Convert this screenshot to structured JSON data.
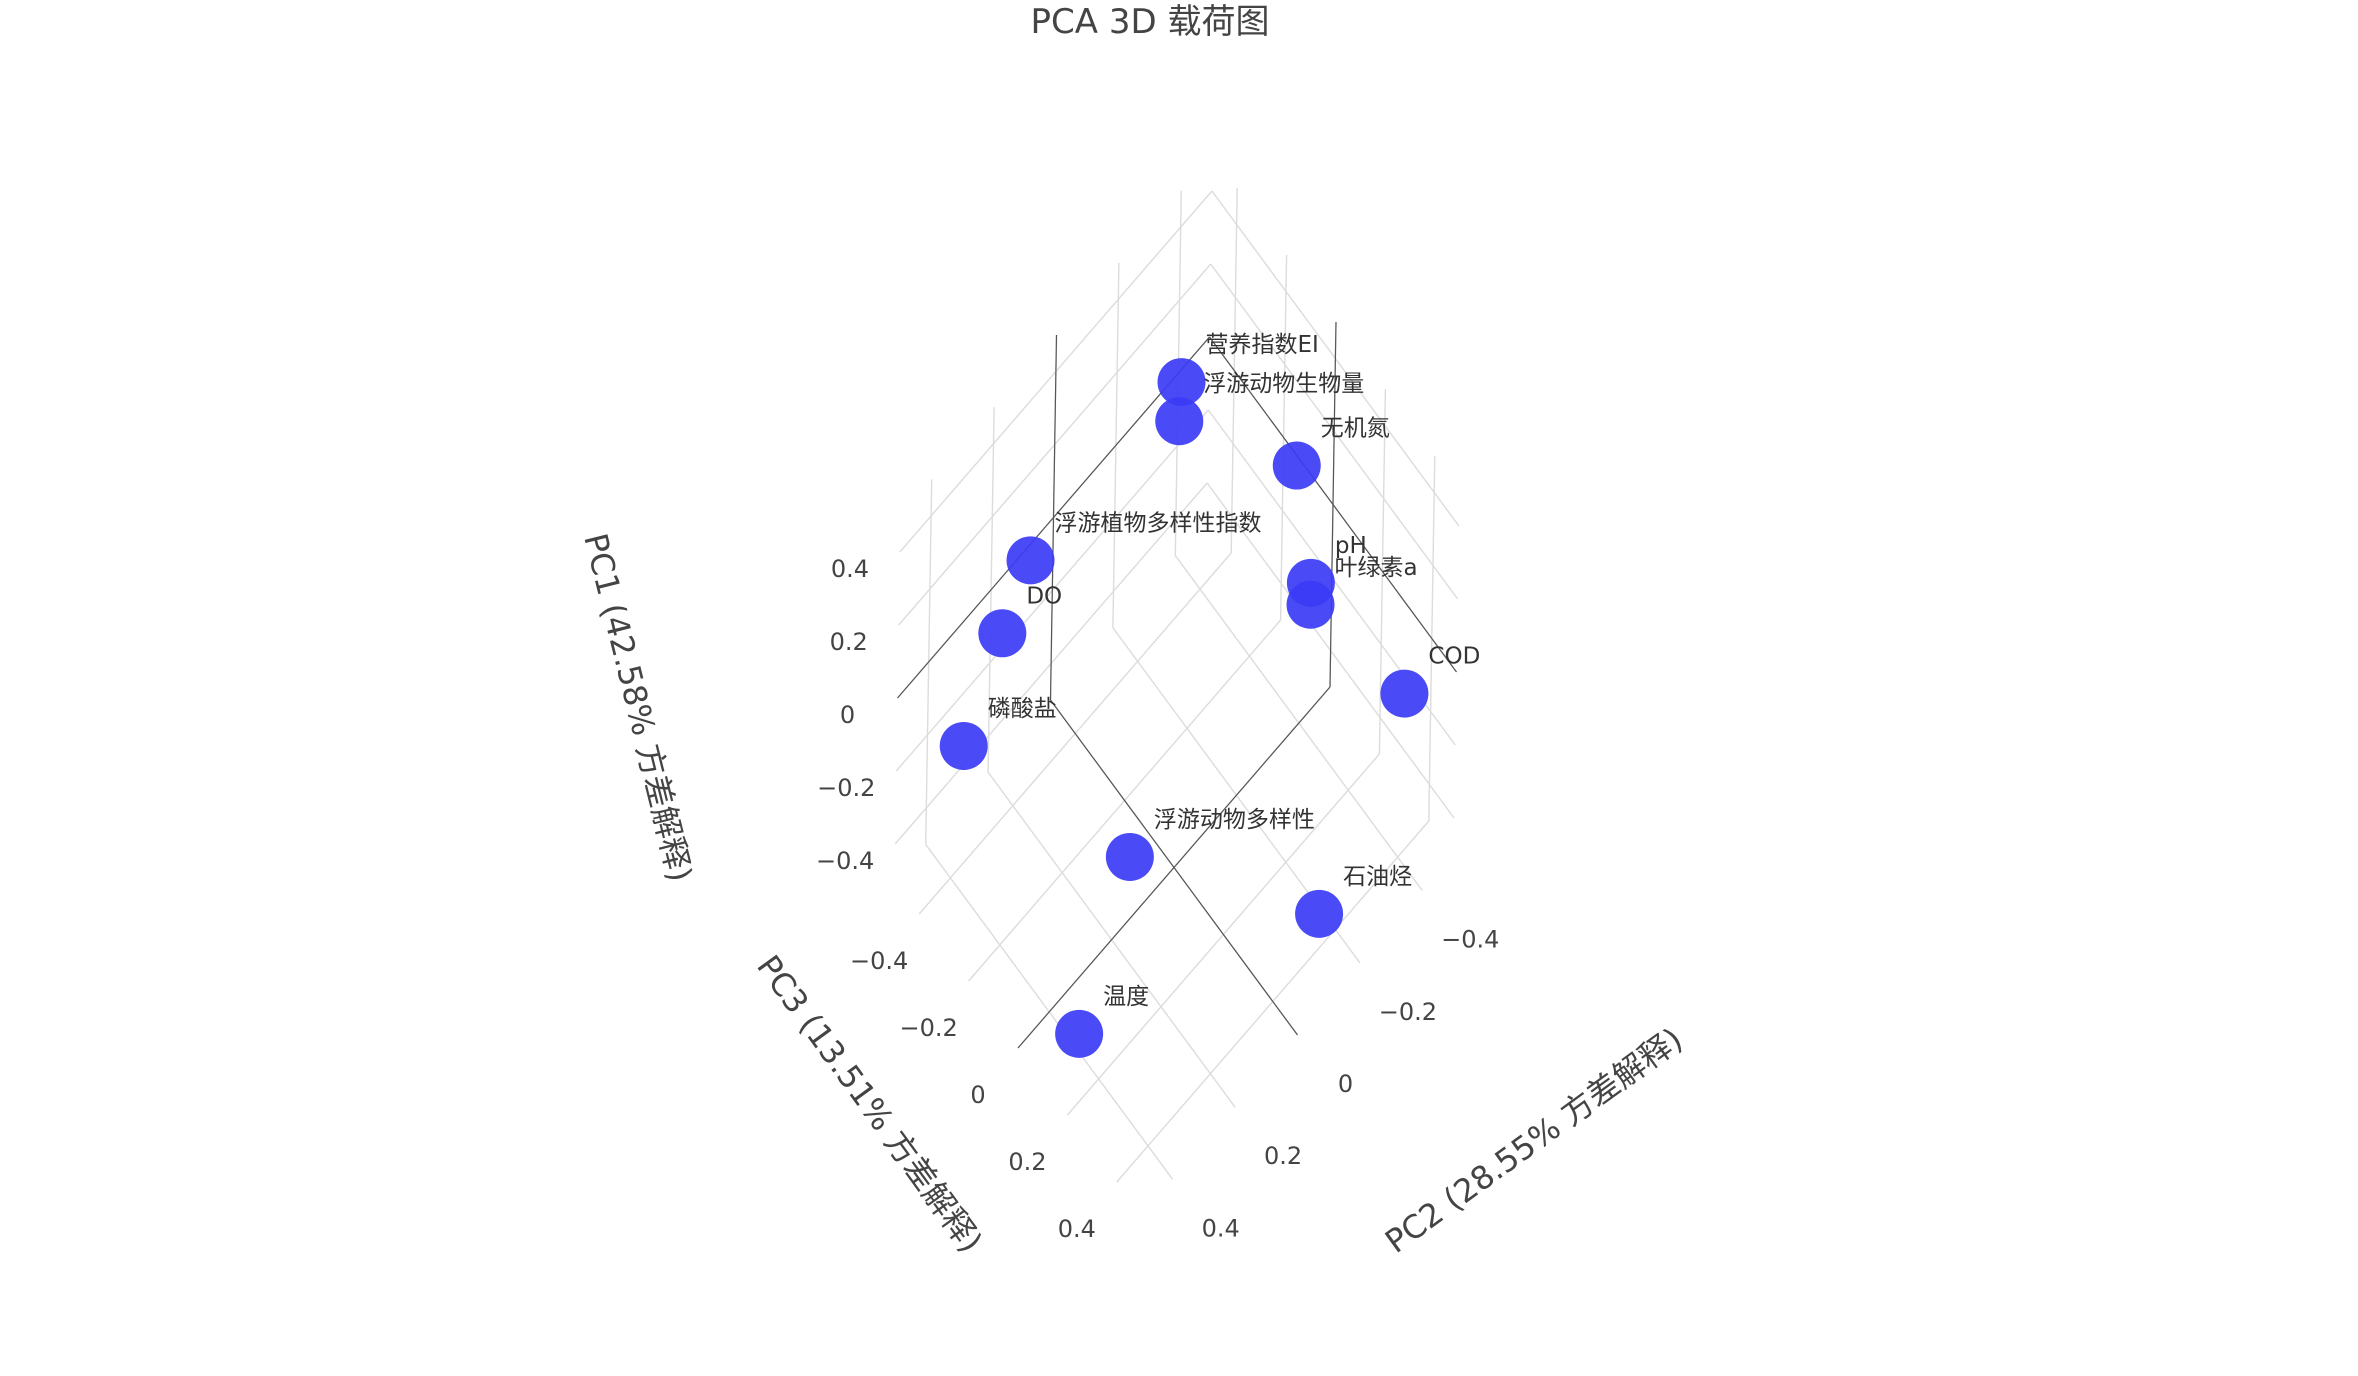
{
  "chart_data": {
    "type": "scatter",
    "title": "PCA 3D 载荷图",
    "xlabel": "PC2 (28.55% 方差解释)",
    "ylabel": "PC3 (13.51% 方差解释)",
    "zlabel": "PC1 (42.58% 方差解释)",
    "xlim": [
      -0.5,
      0.5
    ],
    "ylim": [
      -0.5,
      0.5
    ],
    "zlim": [
      -0.5,
      0.5
    ],
    "x_ticks": [
      "−0.4",
      "−0.2",
      "0",
      "0.2",
      "0.4"
    ],
    "y_ticks": [
      "−0.4",
      "−0.2",
      "0",
      "0.2",
      "0.4"
    ],
    "z_ticks": [
      "−0.4",
      "−0.2",
      "0",
      "0.2",
      "0.4"
    ],
    "grid": true,
    "marker_color": "#3b3bf5",
    "series": [
      {
        "points": [
          {
            "label": "营养指数EI",
            "x": -0.18,
            "y": -0.22,
            "z": 0.45
          },
          {
            "label": "浮游动物生物量",
            "x": -0.15,
            "y": -0.19,
            "z": 0.4
          },
          {
            "label": "无机氮",
            "x": -0.33,
            "y": 0.06,
            "z": 0.33
          },
          {
            "label": "浮游植物多样性指数",
            "x": 0.18,
            "y": -0.37,
            "z": 0.18
          },
          {
            "label": "DO",
            "x": 0.26,
            "y": -0.38,
            "z": 0.05
          },
          {
            "label": "磷酸盐",
            "x": 0.38,
            "y": -0.38,
            "z": -0.14
          },
          {
            "label": "pH",
            "x": -0.3,
            "y": 0.16,
            "z": 0.13
          },
          {
            "label": "叶绿素a",
            "x": -0.3,
            "y": 0.16,
            "z": 0.07
          },
          {
            "label": "浮游动物多样性",
            "x": 0.12,
            "y": -0.03,
            "z": -0.38
          },
          {
            "label": "COD",
            "x": -0.43,
            "y": 0.38,
            "z": -0.1
          },
          {
            "label": "石油烃",
            "x": -0.13,
            "y": 0.42,
            "z": -0.37
          },
          {
            "label": "温度",
            "x": 0.4,
            "y": 0.12,
            "z": -0.45
          }
        ]
      }
    ]
  }
}
